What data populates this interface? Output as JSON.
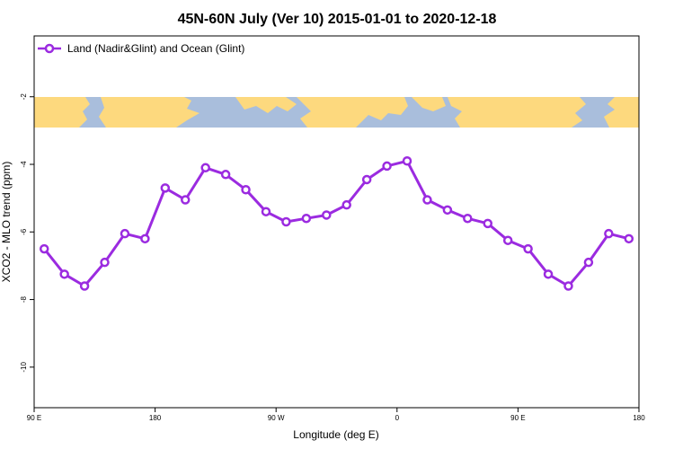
{
  "chart_data": {
    "type": "line",
    "title": "45N-60N July (Ver 10)   2015-01-01 to 2020-12-18",
    "xlabel": "Longitude (deg E)",
    "ylabel": "XCO2 - MLO trend (ppm)",
    "x_ticks": [
      {
        "value": 90,
        "label": "90 E"
      },
      {
        "value": 180,
        "label": "180"
      },
      {
        "value": 270,
        "label": "90 W"
      },
      {
        "value": 360,
        "label": "0"
      },
      {
        "value": 450,
        "label": "90 E"
      },
      {
        "value": 540,
        "label": "180"
      }
    ],
    "y_ticks": [
      -2,
      -4,
      -6,
      -8,
      -10
    ],
    "xlim": [
      90,
      540
    ],
    "ylim": [
      -11.2,
      -0.2
    ],
    "grid": false,
    "legend_position": "top-left",
    "series": [
      {
        "name": "Land (Nadir&Glint) and Ocean (Glint)",
        "color": "#9b2be0",
        "x": [
          97.5,
          112.5,
          127.5,
          142.5,
          157.5,
          172.5,
          187.5,
          202.5,
          217.5,
          232.5,
          247.5,
          262.5,
          277.5,
          292.5,
          307.5,
          322.5,
          337.5,
          352.5,
          367.5,
          382.5,
          397.5,
          412.5,
          427.5,
          442.5,
          457.5,
          472.5,
          487.5,
          502.5,
          517.5,
          532.5
        ],
        "values": [
          -6.5,
          -7.25,
          -7.6,
          -6.9,
          -6.05,
          -6.2,
          -4.7,
          -5.05,
          -4.1,
          -4.3,
          -4.75,
          -5.4,
          -5.7,
          -5.6,
          -5.5,
          -5.2,
          -4.45,
          -4.05,
          -3.9,
          -5.05,
          -5.35,
          -5.6,
          -5.75,
          -6.25,
          -6.5,
          -7.25,
          -7.6,
          -6.9,
          -6.05,
          -6.2
        ]
      }
    ],
    "map_strip": {
      "description": "world map background band",
      "land_color": "#fdd97e",
      "ocean_color": "#a9bedc"
    }
  }
}
